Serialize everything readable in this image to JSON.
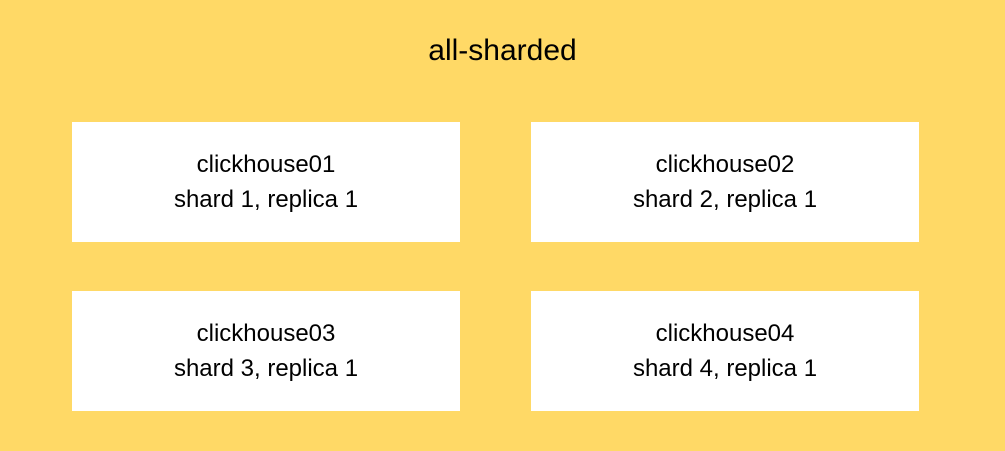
{
  "title": "all-sharded",
  "background_color": "#FFD966",
  "node_color": "#FFFFFF",
  "nodes": [
    {
      "name": "clickhouse01",
      "role": "shard 1, replica 1"
    },
    {
      "name": "clickhouse02",
      "role": "shard 2, replica 1"
    },
    {
      "name": "clickhouse03",
      "role": "shard 3, replica 1"
    },
    {
      "name": "clickhouse04",
      "role": "shard 4, replica 1"
    }
  ]
}
